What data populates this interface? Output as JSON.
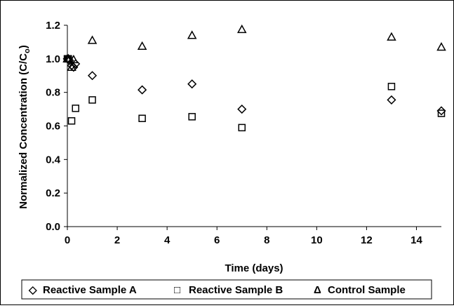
{
  "chart_data": {
    "type": "scatter",
    "xlabel": "Time (days)",
    "ylabel_main": "Normalized Concentration (C/C",
    "ylabel_sub": "o",
    "ylabel_close": ")",
    "xlim": [
      0,
      15
    ],
    "ylim": [
      0.0,
      1.2
    ],
    "x_ticks": [
      0,
      2,
      4,
      6,
      8,
      10,
      12,
      14
    ],
    "y_ticks": [
      0.0,
      0.2,
      0.4,
      0.6,
      0.8,
      1.0,
      1.2
    ],
    "x_tick_labels": [
      "0",
      "2",
      "4",
      "6",
      "8",
      "10",
      "12",
      "14"
    ],
    "y_tick_labels": [
      "0.0",
      "0.2",
      "0.4",
      "0.6",
      "0.8",
      "1.0",
      "1.2"
    ],
    "grid": false,
    "legend_position": "bottom",
    "series": [
      {
        "name": "Reactive Sample A",
        "marker": "diamond",
        "legend_symbol": "◇",
        "x": [
          0,
          0.04,
          0.08,
          0.17,
          0.25,
          0.33,
          1,
          3,
          5,
          7,
          13,
          15
        ],
        "y": [
          1.0,
          1.0,
          0.99,
          0.96,
          0.95,
          0.97,
          0.9,
          0.815,
          0.85,
          0.7,
          0.755,
          0.69
        ]
      },
      {
        "name": "Reactive Sample B",
        "marker": "square",
        "legend_symbol": "□",
        "x": [
          0,
          0.04,
          0.17,
          0.33,
          1,
          3,
          5,
          7,
          13,
          15
        ],
        "y": [
          1.0,
          1.0,
          0.63,
          0.705,
          0.755,
          0.645,
          0.655,
          0.59,
          0.835,
          0.675
        ],
        "x_hidden_note": null
      },
      {
        "name": "Control Sample",
        "marker": "triangle",
        "legend_symbol": "Δ",
        "x": [
          0,
          0.04,
          0.17,
          0.25,
          1,
          3,
          5,
          7,
          13,
          15
        ],
        "y": [
          1.0,
          1.0,
          0.95,
          0.995,
          1.11,
          1.075,
          1.14,
          1.175,
          1.13,
          1.07
        ]
      }
    ]
  }
}
